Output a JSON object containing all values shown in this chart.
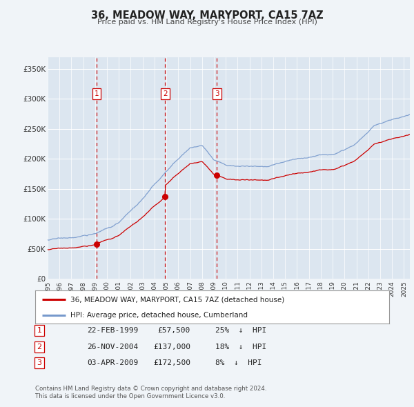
{
  "title": "36, MEADOW WAY, MARYPORT, CA15 7AZ",
  "subtitle": "Price paid vs. HM Land Registry's House Price Index (HPI)",
  "background_color": "#f0f4f8",
  "plot_bg_color": "#dce6f0",
  "grid_color": "#ffffff",
  "red_line_color": "#cc0000",
  "blue_line_color": "#7799cc",
  "transactions": [
    {
      "num": 1,
      "date_dec": 1999.14,
      "price": 57500,
      "label": "22-FEB-1999",
      "pct": "25%",
      "dir": "↓"
    },
    {
      "num": 2,
      "date_dec": 2004.9,
      "price": 137000,
      "label": "26-NOV-2004",
      "pct": "18%",
      "dir": "↓"
    },
    {
      "num": 3,
      "date_dec": 2009.25,
      "price": 172500,
      "label": "03-APR-2009",
      "pct": "8%",
      "dir": "↓"
    }
  ],
  "ylabel_vals": [
    0,
    50000,
    100000,
    150000,
    200000,
    250000,
    300000,
    350000
  ],
  "ylabel_strs": [
    "£0",
    "£50K",
    "£100K",
    "£150K",
    "£200K",
    "£250K",
    "£300K",
    "£350K"
  ],
  "xmin": 1995.0,
  "xmax": 2025.5,
  "ymin": 0,
  "ymax": 370000,
  "legend_red_label": "36, MEADOW WAY, MARYPORT, CA15 7AZ (detached house)",
  "legend_blue_label": "HPI: Average price, detached house, Cumberland",
  "footer1": "Contains HM Land Registry data © Crown copyright and database right 2024.",
  "footer2": "This data is licensed under the Open Government Licence v3.0."
}
